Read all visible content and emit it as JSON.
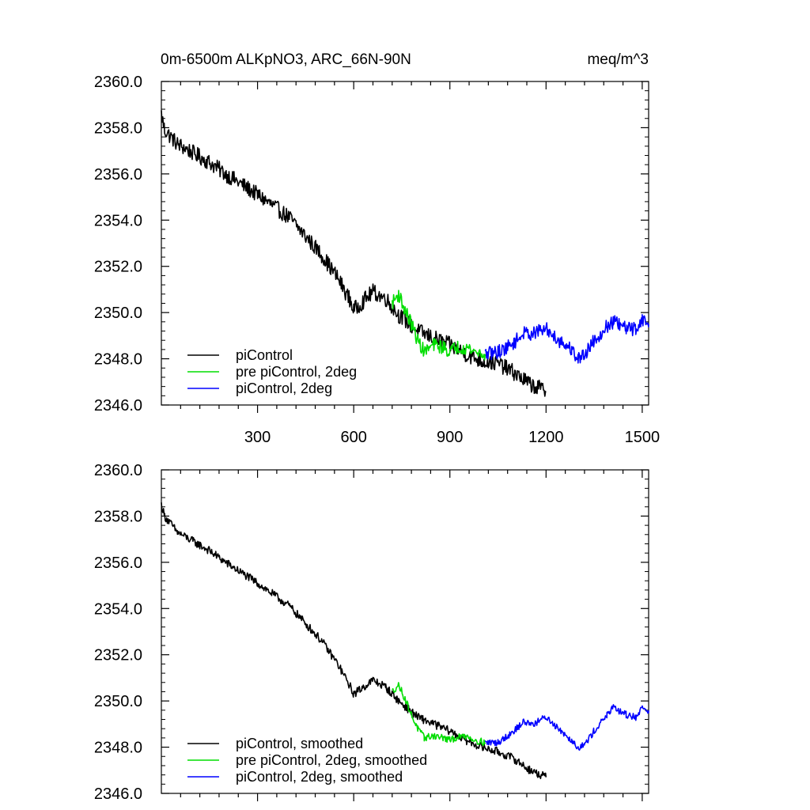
{
  "page_title": "0m-6500m ALKpNO3, ARC_66N-90N",
  "units": "meq/m^3",
  "chart_data": [
    {
      "type": "line",
      "title": "0m-6500m ALKpNO3, ARC_66N-90N",
      "units": "meq/m^3",
      "xlim": [
        0,
        1520
      ],
      "ylim": [
        2346.0,
        2360.0
      ],
      "x_ticks": [
        300,
        600,
        900,
        1200,
        1500
      ],
      "x_tick_labels": [
        "300",
        "600",
        "900",
        "1200",
        "1500"
      ],
      "y_ticks": [
        2346.0,
        2348.0,
        2350.0,
        2352.0,
        2354.0,
        2356.0,
        2358.0,
        2360.0
      ],
      "y_tick_labels": [
        "2346.0",
        "2348.0",
        "2350.0",
        "2352.0",
        "2354.0",
        "2356.0",
        "2358.0",
        "2360.0"
      ],
      "legend_position": "bottom-left",
      "series": [
        {
          "name": "piControl",
          "color": "#000000",
          "noise": 0.35,
          "x": [
            0,
            10,
            50,
            100,
            150,
            200,
            300,
            400,
            500,
            550,
            590,
            600,
            630,
            660,
            700,
            740,
            800,
            850,
            900,
            950,
            1000,
            1050,
            1100,
            1150,
            1200
          ],
          "y": [
            2358.6,
            2357.9,
            2357.3,
            2356.9,
            2356.5,
            2356.0,
            2355.1,
            2354.1,
            2352.5,
            2351.5,
            2350.5,
            2350.1,
            2350.5,
            2350.9,
            2350.6,
            2349.9,
            2349.2,
            2348.9,
            2348.6,
            2348.2,
            2347.9,
            2347.8,
            2347.4,
            2346.9,
            2346.6
          ]
        },
        {
          "name": "pre piControl, 2deg",
          "color": "#00dd00",
          "noise": 0.3,
          "x": [
            720,
            740,
            760,
            780,
            800,
            820,
            850,
            880,
            900,
            920,
            950,
            980,
            1010
          ],
          "y": [
            2350.4,
            2350.8,
            2350.1,
            2349.5,
            2348.8,
            2348.3,
            2348.6,
            2348.5,
            2348.3,
            2348.5,
            2348.5,
            2348.3,
            2348.2
          ]
        },
        {
          "name": "piControl, 2deg",
          "color": "#0000ff",
          "noise": 0.3,
          "x": [
            1010,
            1050,
            1080,
            1100,
            1130,
            1160,
            1200,
            1240,
            1280,
            1300,
            1320,
            1350,
            1390,
            1410,
            1450,
            1480,
            1500,
            1520
          ],
          "y": [
            2348.2,
            2348.3,
            2348.5,
            2348.7,
            2349.1,
            2349.1,
            2349.3,
            2348.8,
            2348.4,
            2348.0,
            2348.2,
            2348.8,
            2349.4,
            2349.6,
            2349.3,
            2349.3,
            2349.7,
            2349.5
          ]
        }
      ]
    },
    {
      "type": "line",
      "title": "",
      "xlim": [
        0,
        1520
      ],
      "ylim": [
        2346.0,
        2360.0
      ],
      "x_ticks": [
        300,
        600,
        900,
        1200,
        1500
      ],
      "y_ticks": [
        2346.0,
        2348.0,
        2350.0,
        2352.0,
        2354.0,
        2356.0,
        2358.0,
        2360.0
      ],
      "y_tick_labels": [
        "2346.0",
        "2348.0",
        "2350.0",
        "2352.0",
        "2354.0",
        "2356.0",
        "2358.0",
        "2360.0"
      ],
      "legend_position": "bottom-left",
      "series": [
        {
          "name": "piControl, smoothed",
          "color": "#000000",
          "noise": 0.18,
          "x": [
            0,
            10,
            50,
            100,
            150,
            200,
            300,
            400,
            500,
            550,
            590,
            600,
            630,
            660,
            700,
            740,
            800,
            850,
            900,
            950,
            1000,
            1050,
            1100,
            1150,
            1200
          ],
          "y": [
            2358.5,
            2358.0,
            2357.3,
            2356.9,
            2356.5,
            2356.0,
            2355.1,
            2354.1,
            2352.6,
            2351.6,
            2350.6,
            2350.3,
            2350.6,
            2350.9,
            2350.6,
            2350.0,
            2349.3,
            2349.0,
            2348.7,
            2348.3,
            2348.0,
            2347.8,
            2347.5,
            2347.0,
            2346.7
          ]
        },
        {
          "name": "pre piControl, 2deg, smoothed",
          "color": "#00dd00",
          "noise": 0.15,
          "x": [
            720,
            740,
            760,
            780,
            800,
            820,
            850,
            880,
            900,
            920,
            950,
            980,
            1010
          ],
          "y": [
            2350.4,
            2350.7,
            2350.1,
            2349.4,
            2348.8,
            2348.4,
            2348.5,
            2348.4,
            2348.3,
            2348.4,
            2348.5,
            2348.3,
            2348.2
          ]
        },
        {
          "name": "piControl, 2deg, smoothed",
          "color": "#0000ff",
          "noise": 0.15,
          "x": [
            1010,
            1050,
            1080,
            1100,
            1130,
            1160,
            1200,
            1240,
            1280,
            1300,
            1320,
            1350,
            1390,
            1410,
            1450,
            1480,
            1500,
            1520
          ],
          "y": [
            2348.2,
            2348.2,
            2348.5,
            2348.7,
            2349.1,
            2349.0,
            2349.3,
            2348.8,
            2348.3,
            2348.0,
            2348.1,
            2348.7,
            2349.4,
            2349.7,
            2349.4,
            2349.3,
            2349.7,
            2349.6
          ]
        }
      ]
    }
  ]
}
